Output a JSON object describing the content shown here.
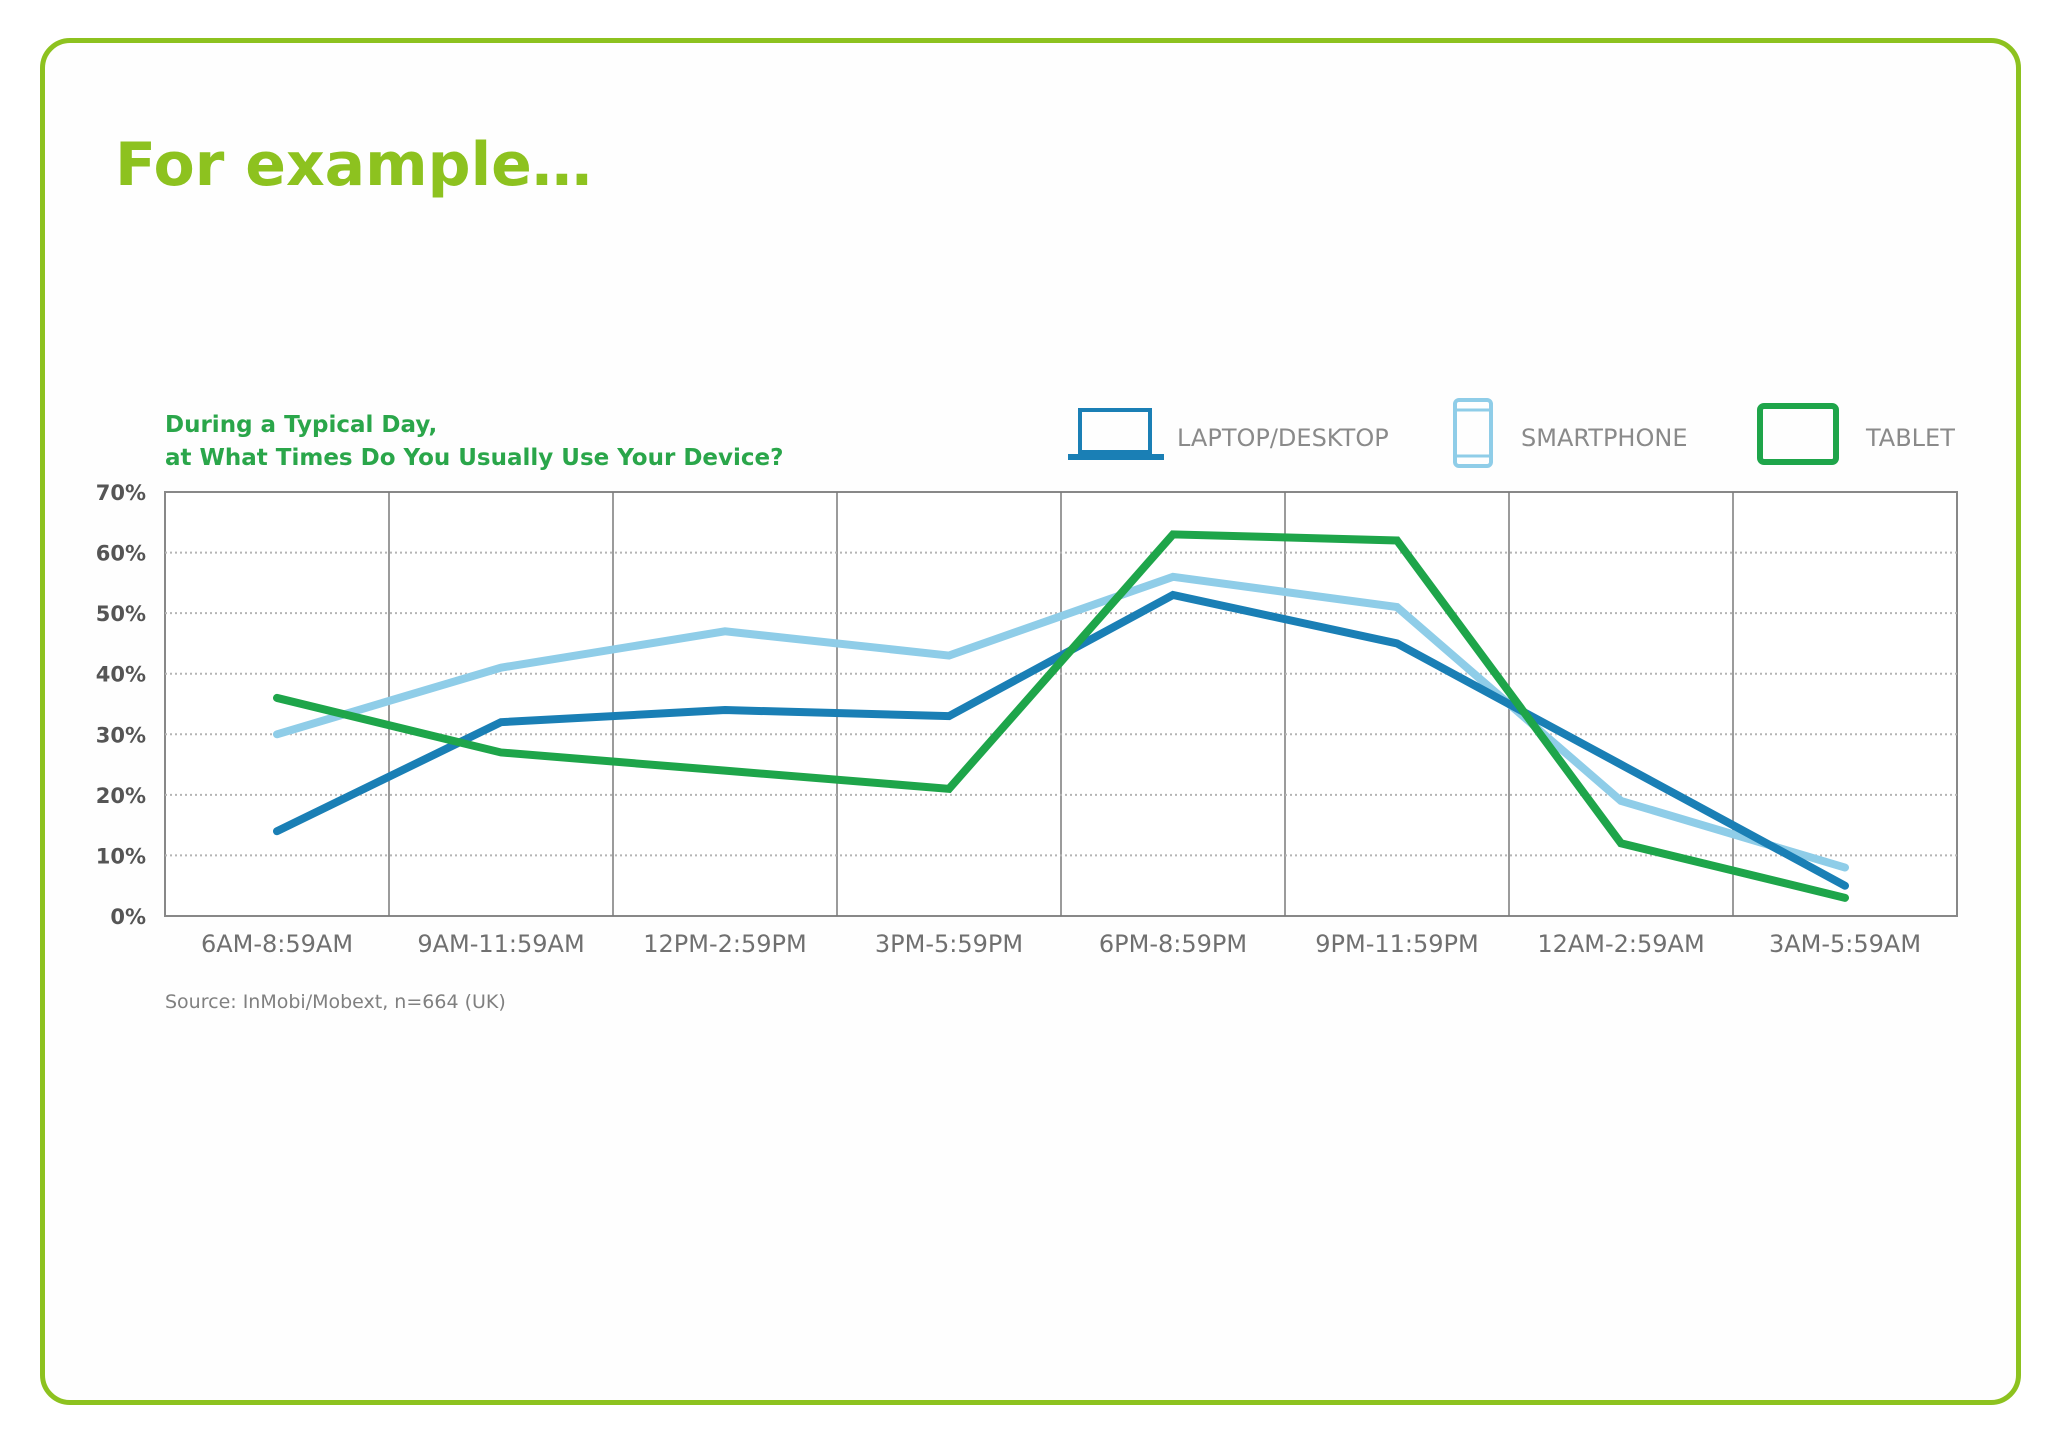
{
  "slide": {
    "heading": "For example…",
    "frame_color": "#8dc21f"
  },
  "chart_data": {
    "type": "line",
    "title": "During a Typical Day,",
    "subtitle": "at What Times Do You Usually Use Your Device?",
    "source": "Source: InMobi/Mobext, n=664 (UK)",
    "categories": [
      "6AM-8:59AM",
      "9AM-11:59AM",
      "12PM-2:59PM",
      "3PM-5:59PM",
      "6PM-8:59PM",
      "9PM-11:59PM",
      "12AM-2:59AM",
      "3AM-5:59AM"
    ],
    "yticks": [
      "0%",
      "10%",
      "20%",
      "30%",
      "40%",
      "50%",
      "60%",
      "70%"
    ],
    "ylim": [
      0,
      70
    ],
    "grid": true,
    "legend_position": "top-right",
    "series": [
      {
        "name": "LAPTOP/DESKTOP",
        "icon": "laptop-icon",
        "color": "#1a7fb5",
        "values": [
          14,
          32,
          34,
          33,
          53,
          45,
          25,
          5
        ]
      },
      {
        "name": "SMARTPHONE",
        "icon": "smartphone-icon",
        "color": "#8fcde8",
        "values": [
          30,
          41,
          47,
          43,
          56,
          51,
          19,
          8
        ]
      },
      {
        "name": "TABLET",
        "icon": "tablet-icon",
        "color": "#1ea54a",
        "values": [
          36,
          27,
          24,
          21,
          63,
          62,
          12,
          3
        ]
      }
    ]
  }
}
